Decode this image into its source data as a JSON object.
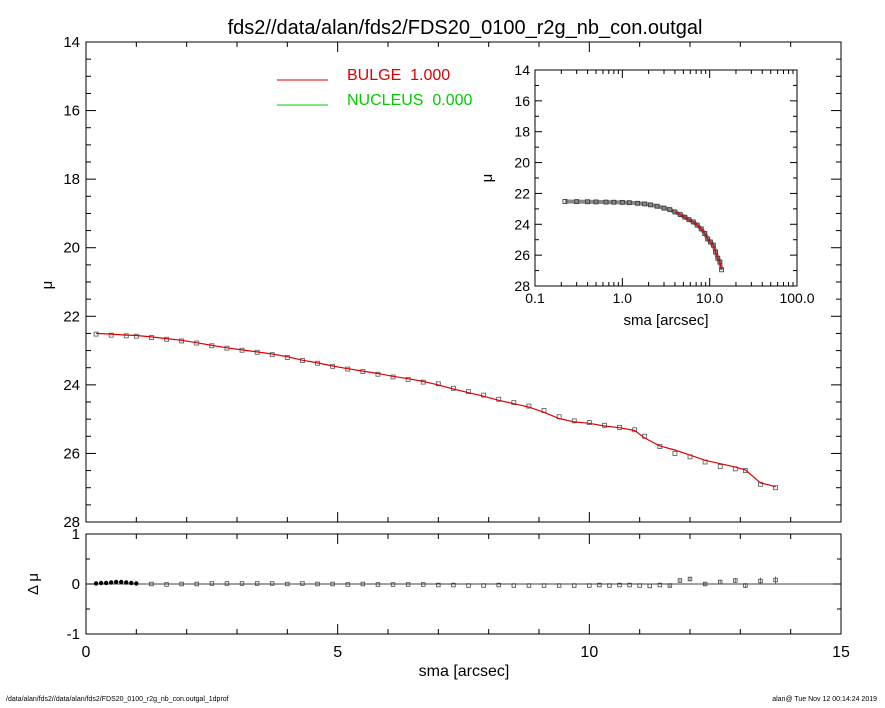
{
  "chart_data": [
    {
      "id": "main",
      "type": "line",
      "title": "fds2//data/alan/fds2/FDS20_0100_r2g_nb_con.outgal",
      "xlabel": "",
      "ylabel": "μ",
      "xlim": [
        0,
        15
      ],
      "ylim": [
        28,
        14
      ],
      "y_inverted": true,
      "xticks": [
        "0",
        "5",
        "10",
        "15"
      ],
      "yticks": [
        "14",
        "16",
        "18",
        "20",
        "22",
        "24",
        "26",
        "28"
      ],
      "legend_position": "top-center",
      "series": [
        {
          "name": "BULGE 1.000",
          "color": "#e00000",
          "style": "line",
          "x": [
            0.2,
            0.5,
            0.8,
            1.0,
            1.3,
            1.6,
            1.9,
            2.2,
            2.5,
            2.8,
            3.1,
            3.4,
            3.7,
            4.0,
            4.3,
            4.6,
            4.9,
            5.2,
            5.5,
            5.8,
            6.1,
            6.4,
            6.7,
            7.0,
            7.3,
            7.6,
            7.9,
            8.2,
            8.5,
            8.8,
            9.1,
            9.4,
            9.7,
            10.0,
            10.3,
            10.6,
            10.9,
            11.1,
            11.4,
            11.7,
            12.0,
            12.3,
            12.6,
            12.9,
            13.1,
            13.4,
            13.7
          ],
          "y": [
            22.5,
            22.52,
            22.55,
            22.56,
            22.6,
            22.65,
            22.7,
            22.77,
            22.85,
            22.92,
            22.98,
            23.04,
            23.1,
            23.18,
            23.28,
            23.36,
            23.45,
            23.53,
            23.6,
            23.67,
            23.75,
            23.82,
            23.9,
            24.0,
            24.12,
            24.23,
            24.33,
            24.45,
            24.55,
            24.65,
            24.8,
            24.98,
            25.08,
            25.12,
            25.2,
            25.25,
            25.33,
            25.55,
            25.78,
            25.9,
            26.05,
            26.2,
            26.3,
            26.4,
            26.48,
            26.86,
            26.97
          ]
        },
        {
          "name": "NUCLEUS 0.000",
          "color": "#00cc00",
          "style": "line",
          "x": [],
          "y": []
        },
        {
          "name": "",
          "color": "#555555",
          "style": "markers",
          "x": [
            0.2,
            0.5,
            0.8,
            1.0,
            1.3,
            1.6,
            1.9,
            2.2,
            2.5,
            2.8,
            3.1,
            3.4,
            3.7,
            4.0,
            4.3,
            4.6,
            4.9,
            5.2,
            5.5,
            5.8,
            6.1,
            6.4,
            6.7,
            7.0,
            7.3,
            7.6,
            7.9,
            8.2,
            8.5,
            8.8,
            9.1,
            9.4,
            9.7,
            10.0,
            10.3,
            10.6,
            10.9,
            11.1,
            11.4,
            11.7,
            12.0,
            12.3,
            12.6,
            12.9,
            13.1,
            13.4,
            13.7
          ],
          "y": [
            22.52,
            22.55,
            22.57,
            22.58,
            22.62,
            22.67,
            22.72,
            22.78,
            22.86,
            22.93,
            22.99,
            23.05,
            23.12,
            23.2,
            23.29,
            23.37,
            23.46,
            23.54,
            23.61,
            23.69,
            23.77,
            23.84,
            23.92,
            23.97,
            24.1,
            24.2,
            24.3,
            24.42,
            24.52,
            24.62,
            24.75,
            24.93,
            25.05,
            25.1,
            25.18,
            25.24,
            25.31,
            25.5,
            25.8,
            26.0,
            26.1,
            26.25,
            26.38,
            26.45,
            26.5,
            26.9,
            27.0
          ]
        }
      ],
      "legend": [
        {
          "label": "BULGE  1.000",
          "color": "#e00000"
        },
        {
          "label": "NUCLEUS  0.000",
          "color": "#00cc00"
        }
      ]
    },
    {
      "id": "inset",
      "type": "scatter",
      "xlabel": "sma [arcsec]",
      "ylabel": "μ",
      "x_scale": "log",
      "xlim": [
        0.1,
        100
      ],
      "ylim": [
        28,
        14
      ],
      "y_inverted": true,
      "xticks": [
        "0.1",
        "1.0",
        "10.0",
        "100.0"
      ],
      "yticks": [
        "14",
        "16",
        "18",
        "20",
        "22",
        "24",
        "26",
        "28"
      ],
      "series": [
        {
          "name": "",
          "color": "#555555",
          "x": [
            0.22,
            0.3,
            0.4,
            0.5,
            0.65,
            0.8,
            1.0,
            1.2,
            1.5,
            1.8,
            2.1,
            2.5,
            3.0,
            3.5,
            4.0,
            4.6,
            5.2,
            5.8,
            6.5,
            7.2,
            8.0,
            8.8,
            9.5,
            10.2,
            11.0,
            11.7,
            12.4,
            13.1,
            13.7
          ],
          "y": [
            22.52,
            22.53,
            22.54,
            22.55,
            22.56,
            22.57,
            22.58,
            22.6,
            22.64,
            22.68,
            22.74,
            22.83,
            22.95,
            23.05,
            23.2,
            23.37,
            23.54,
            23.7,
            23.85,
            24.05,
            24.3,
            24.6,
            24.95,
            25.15,
            25.35,
            25.8,
            26.2,
            26.45,
            26.95
          ]
        }
      ]
    },
    {
      "id": "residual",
      "type": "scatter",
      "xlabel": "sma [arcsec]",
      "ylabel": "Δ μ",
      "xlim": [
        0,
        15
      ],
      "ylim": [
        -1,
        1
      ],
      "xticks": [
        "0",
        "5",
        "10",
        "15"
      ],
      "yticks": [
        "1",
        "0",
        "-1"
      ],
      "zero_line": true,
      "series": [
        {
          "name": "",
          "color": "#000000",
          "x": [
            0.2,
            0.3,
            0.4,
            0.5,
            0.6,
            0.7,
            0.8,
            0.9,
            1.0,
            1.3,
            1.6,
            1.9,
            2.2,
            2.5,
            2.8,
            3.1,
            3.4,
            3.7,
            4.0,
            4.3,
            4.6,
            4.9,
            5.2,
            5.5,
            5.8,
            6.1,
            6.4,
            6.7,
            7.0,
            7.3,
            7.6,
            7.9,
            8.2,
            8.5,
            8.8,
            9.1,
            9.4,
            9.7,
            10.0,
            10.2,
            10.4,
            10.6,
            10.8,
            11.0,
            11.2,
            11.4,
            11.6,
            11.8,
            12.0,
            12.3,
            12.6,
            12.9,
            13.1,
            13.4,
            13.7
          ],
          "y": [
            0.01,
            0.02,
            0.02,
            0.03,
            0.04,
            0.04,
            0.03,
            0.02,
            0.01,
            0.0,
            -0.01,
            0.0,
            0.0,
            0.01,
            0.01,
            0.01,
            0.01,
            0.01,
            0.0,
            0.01,
            0.0,
            0.0,
            -0.01,
            0.0,
            -0.01,
            -0.01,
            -0.01,
            -0.01,
            -0.02,
            -0.02,
            -0.03,
            -0.03,
            -0.02,
            -0.03,
            -0.03,
            -0.03,
            -0.03,
            -0.03,
            -0.03,
            -0.02,
            -0.03,
            -0.02,
            -0.02,
            -0.03,
            -0.04,
            -0.02,
            -0.03,
            0.07,
            0.1,
            0.0,
            0.04,
            0.07,
            -0.03,
            0.06,
            0.08
          ],
          "err": [
            0.005,
            0.005,
            0.005,
            0.005,
            0.005,
            0.005,
            0.005,
            0.005,
            0.005,
            0.005,
            0.005,
            0.005,
            0.005,
            0.005,
            0.005,
            0.005,
            0.005,
            0.005,
            0.005,
            0.005,
            0.005,
            0.005,
            0.005,
            0.005,
            0.005,
            0.01,
            0.01,
            0.01,
            0.01,
            0.01,
            0.01,
            0.01,
            0.01,
            0.01,
            0.01,
            0.01,
            0.01,
            0.01,
            0.015,
            0.015,
            0.015,
            0.015,
            0.02,
            0.02,
            0.02,
            0.02,
            0.03,
            0.03,
            0.03,
            0.04,
            0.04,
            0.05,
            0.05,
            0.07,
            0.07
          ]
        }
      ]
    }
  ],
  "footer": {
    "left": "/data/alan/fds2//data/alan/fds2/FDS20_0100_r2g_nb_con.outgal_1dprof",
    "right": "alan@  Tue Nov 12 00:14:24 2019"
  }
}
